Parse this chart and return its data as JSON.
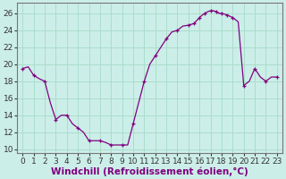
{
  "hours": [
    0,
    0.5,
    1,
    1.5,
    2,
    2.5,
    3,
    3.5,
    4,
    4.5,
    5,
    5.5,
    6,
    6.5,
    7,
    7.5,
    8,
    8.5,
    9,
    9.5,
    10,
    10.5,
    11,
    11.5,
    12,
    12.5,
    13,
    13.5,
    14,
    14.5,
    15,
    15.5,
    16,
    16.25,
    16.5,
    16.75,
    17,
    17.25,
    17.5,
    17.75,
    18,
    18.25,
    18.5,
    19,
    19.5,
    20,
    20.5,
    21,
    21.5,
    22,
    22.5,
    23
  ],
  "values": [
    19.5,
    19.7,
    18.7,
    18.3,
    18.0,
    15.5,
    13.5,
    14.0,
    14.0,
    13.0,
    12.5,
    12.0,
    11.0,
    11.0,
    11.0,
    10.8,
    10.5,
    10.5,
    10.5,
    10.5,
    13.0,
    15.5,
    18.0,
    20.0,
    21.0,
    22.0,
    23.0,
    23.8,
    24.0,
    24.5,
    24.6,
    24.8,
    25.5,
    25.8,
    26.0,
    26.2,
    26.3,
    26.3,
    26.2,
    26.0,
    26.0,
    25.9,
    25.8,
    25.5,
    25.0,
    17.5,
    18.0,
    19.5,
    18.5,
    18.0,
    18.5,
    18.5
  ],
  "marker_hours": [
    0,
    1,
    2,
    3,
    4,
    5,
    6,
    7,
    8,
    9,
    10,
    11,
    12,
    13,
    14,
    15,
    15.5,
    16,
    16.5,
    17,
    17.5,
    18,
    18.5,
    19,
    20,
    21,
    22,
    23
  ],
  "marker_values": [
    19.5,
    18.7,
    18.0,
    13.5,
    14.0,
    12.5,
    11.0,
    11.0,
    10.5,
    10.5,
    13.0,
    18.0,
    21.0,
    23.0,
    24.0,
    24.6,
    24.8,
    25.5,
    26.0,
    26.3,
    26.2,
    26.0,
    25.8,
    25.5,
    17.5,
    19.5,
    18.0,
    18.5
  ],
  "line_color": "#800080",
  "marker": "+",
  "bg_color": "#cceee8",
  "grid_color": "#aaddcc",
  "xlabel": "Windchill (Refroidissement éolien,°C)",
  "xlim": [
    -0.5,
    23.5
  ],
  "ylim": [
    9.5,
    27.2
  ],
  "yticks": [
    10,
    12,
    14,
    16,
    18,
    20,
    22,
    24,
    26
  ],
  "xticks": [
    0,
    1,
    2,
    3,
    4,
    5,
    6,
    7,
    8,
    9,
    10,
    11,
    12,
    13,
    14,
    15,
    16,
    17,
    18,
    19,
    20,
    21,
    22,
    23
  ],
  "xlabel_fontsize": 7.5,
  "tick_fontsize": 6.5
}
